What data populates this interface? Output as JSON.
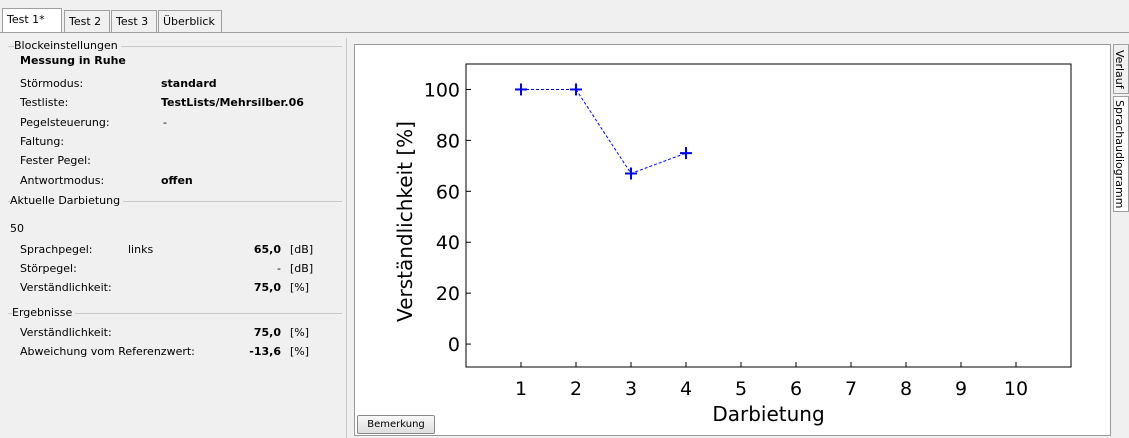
{
  "tabs": [
    {
      "label": "Test 1*",
      "active": true
    },
    {
      "label": "Test 2",
      "active": false
    },
    {
      "label": "Test 3",
      "active": false
    },
    {
      "label": "Überblick",
      "active": false
    }
  ],
  "side_tabs": [
    {
      "label": "Verlauf",
      "active": false
    },
    {
      "label": "Sprachaudiogramm",
      "active": true
    }
  ],
  "block": {
    "title": "Blockeinstellungen",
    "heading": "Messung in Ruhe",
    "rows": [
      {
        "label": "Störmodus:",
        "value": "standard"
      },
      {
        "label": "Testliste:",
        "value": "TestLists/Mehrsilber.06"
      },
      {
        "label": "Pegelsteuerung:",
        "value": "-"
      },
      {
        "label": "Faltung:",
        "value": ""
      },
      {
        "label": "Fester Pegel:",
        "value": ""
      },
      {
        "label": "Antwortmodus:",
        "value": "offen"
      }
    ]
  },
  "current": {
    "title": "Aktuelle Darbietung",
    "number": "50",
    "speech_label": "Sprachpegel:",
    "speech_side": "links",
    "speech_value": "65,0",
    "speech_unit": "[dB]",
    "noise_label": "Störpegel:",
    "noise_value": "-",
    "noise_unit": "[dB]",
    "intel_label": "Verständlichkeit:",
    "intel_value": "75,0",
    "intel_unit": "[%]"
  },
  "results": {
    "title": "Ergebnisse",
    "intel_label": "Verständlichkeit:",
    "intel_value": "75,0",
    "intel_unit": "[%]",
    "dev_label": "Abweichung vom Referenzwert:",
    "dev_value": "-13,6",
    "dev_unit": "[%]"
  },
  "remark_button": "Bemerkung",
  "colors": {
    "series": "#0000ff"
  },
  "chart_data": {
    "type": "line",
    "xlabel": "Darbietung",
    "ylabel": "Verständlichkeit [%]",
    "x_ticks": [
      1,
      2,
      3,
      4,
      5,
      6,
      7,
      8,
      9,
      10
    ],
    "y_ticks": [
      0,
      20,
      40,
      60,
      80,
      100
    ],
    "xlim": [
      0,
      11
    ],
    "ylim": [
      -9,
      110
    ],
    "grid": false,
    "series": [
      {
        "x": [
          1,
          2,
          3,
          4
        ],
        "y": [
          100,
          100,
          67,
          75
        ]
      }
    ]
  }
}
